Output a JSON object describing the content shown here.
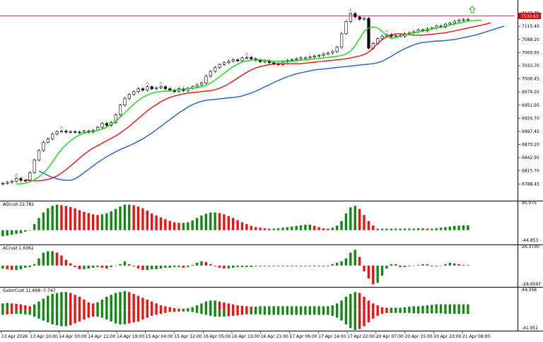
{
  "colors": {
    "background": "#ffffff",
    "candle_bull_body": "#ffffff",
    "candle_bear_body": "#000000",
    "candle_outline": "#000000",
    "jaw": "#1f5fd1",
    "teeth": "#ee1111",
    "lips": "#11dd11",
    "hist_up": "#118811",
    "hist_down": "#ee1111",
    "price_line": "#aa2222",
    "price_tag": "#cc1111",
    "fractal": "#999999",
    "signal_arrow": "#22bb22"
  },
  "main_panel": {
    "current_price": "7130.63",
    "yticks": [
      "7142.70",
      "7115.45",
      "7088.20",
      "7060.95",
      "7033.70",
      "7006.45",
      "6979.20",
      "6951.95",
      "6924.70",
      "6897.45",
      "6870.20",
      "6842.95",
      "6815.70",
      "6788.45"
    ]
  },
  "ao_panel": {
    "label": "AOcust 22.782",
    "ymax": "90.075",
    "ymin": "-44.853"
  },
  "ac_panel": {
    "label": "ACcust 1.6362",
    "ymax": "26.3730",
    "ymin": "-28.6597"
  },
  "gator_panel": {
    "label": "GatorCust 11.698 -7.747",
    "ymax": "44.358",
    "ymin": "-41.951"
  },
  "xticks": [
    "13 Apr 2026",
    "13 Apr 10:00",
    "14 Apr 03:00",
    "14 Apr 11:00",
    "14 Apr 19:00",
    "15 Apr 04:00",
    "15 Apr 12:00",
    "16 Apr 05:00",
    "16 Apr 13:00",
    "16 Apr 21:00",
    "17 Apr 06:00",
    "17 Apr 14:00",
    "17 Apr 22:00",
    "20 Apr 07:00",
    "20 Apr 15:00",
    "20 Apr 23:00",
    "21 Apr 08:00"
  ],
  "chart_data": {
    "type": "line",
    "candles_close": [
      6790,
      6792,
      6794,
      6800,
      6796,
      6795,
      6812,
      6838,
      6858,
      6875,
      6882,
      6892,
      6897,
      6898,
      6896,
      6897,
      6896,
      6895,
      6898,
      6896,
      6900,
      6906,
      6914,
      6910,
      6916,
      6932,
      6952,
      6966,
      6974,
      6980,
      6986,
      6983,
      6990,
      6986,
      6988,
      6990,
      6986,
      6983,
      6980,
      6986,
      6982,
      6987,
      6990,
      6994,
      6998,
      7012,
      7022,
      7030,
      7036,
      7040,
      7043,
      7046,
      7044,
      7050,
      7051,
      7048,
      7045,
      7042,
      7044,
      7040,
      7038,
      7036,
      7042,
      7045,
      7046,
      7048,
      7050,
      7050,
      7052,
      7054,
      7055,
      7058,
      7060,
      7063,
      7072,
      7100,
      7125,
      7142,
      7135,
      7130,
      7132,
      7070,
      7080,
      7090,
      7095,
      7098,
      7094,
      7096,
      7095,
      7100,
      7102,
      7104,
      7108,
      7106,
      7110,
      7112,
      7116,
      7114,
      7120,
      7122,
      7126,
      7128,
      7129,
      7130
    ],
    "alligator_jaw": [
      6815,
      6811,
      6806,
      6802,
      6799,
      6797,
      6796,
      6796,
      6799,
      6805,
      6812,
      6819,
      6826,
      6833,
      6839,
      6845,
      6850,
      6855,
      6860,
      6864,
      6868,
      6872,
      6877,
      6882,
      6888,
      6894,
      6901,
      6908,
      6915,
      6922,
      6929,
      6936,
      6942,
      6948,
      6953,
      6957,
      6960,
      6962,
      6963,
      6964,
      6965,
      6966,
      6967,
      6968,
      6969,
      6971,
      6974,
      6977,
      6981,
      6985,
      6990,
      6994,
      6999,
      7003,
      7007,
      7011,
      7014,
      7017,
      7019,
      7021,
      7023,
      7025,
      7026,
      7027,
      7028,
      7029,
      7030,
      7031,
      7032,
      7033,
      7034,
      7035,
      7036,
      7037,
      7038,
      7040,
      7043,
      7048,
      7053,
      7059,
      7064,
      7069,
      7073,
      7077,
      7080,
      7082,
      7083,
      7084,
      7085,
      7085,
      7086,
      7087,
      7088,
      7090,
      7092,
      7094,
      7096,
      7098,
      7101,
      7104,
      7107,
      7110,
      7113,
      7116
    ],
    "alligator_teeth": [
      6797,
      6796,
      6795,
      6795,
      6796,
      6798,
      6801,
      6805,
      6811,
      6818,
      6826,
      6834,
      6842,
      6850,
      6857,
      6863,
      6868,
      6873,
      6878,
      6883,
      6888,
      6894,
      6901,
      6908,
      6916,
      6924,
      6932,
      6940,
      6947,
      6953,
      6959,
      6964,
      6968,
      6971,
      6973,
      6975,
      6977,
      6978,
      6979,
      6980,
      6981,
      6982,
      6984,
      6987,
      6991,
      6996,
      7002,
      7008,
      7014,
      7020,
      7025,
      7029,
      7032,
      7034,
      7036,
      7037,
      7038,
      7038,
      7038,
      7038,
      7038,
      7038,
      7039,
      7040,
      7041,
      7042,
      7043,
      7044,
      7045,
      7046,
      7047,
      7048,
      7050,
      7052,
      7054,
      7057,
      7062,
      7070,
      7080,
      7088,
      7094,
      7098,
      7100,
      7100,
      7099,
      7098,
      7097,
      7097,
      7097,
      7098,
      7099,
      7100,
      7101,
      7102,
      7104,
      7106,
      7108,
      7110,
      7112,
      7114,
      7116,
      7118,
      7120,
      7123
    ],
    "alligator_lips": [
      6788,
      6789,
      6790,
      6793,
      6797,
      6803,
      6811,
      6821,
      6834,
      6848,
      6860,
      6870,
      6878,
      6885,
      6890,
      6894,
      6896,
      6898,
      6900,
      6902,
      6906,
      6912,
      6919,
      6927,
      6936,
      6945,
      6954,
      6962,
      6968,
      6973,
      6977,
      6979,
      6980,
      6981,
      6982,
      6983,
      6984,
      6985,
      6986,
      6987,
      6988,
      6990,
      6993,
      6998,
      7004,
      7011,
      7018,
      7025,
      7032,
      7037,
      7041,
      7044,
      7045,
      7046,
      7046,
      7045,
      7044,
      7043,
      7043,
      7043,
      7043,
      7043,
      7044,
      7045,
      7046,
      7047,
      7048,
      7049,
      7050,
      7051,
      7052,
      7053,
      7055,
      7058,
      7064,
      7075,
      7090,
      7105,
      7112,
      7114,
      7112,
      7105,
      7095,
      7090,
      7092,
      7095,
      7098,
      7100,
      7102,
      7104,
      7106,
      7108,
      7110,
      7112,
      7114,
      7116,
      7118,
      7120,
      7122,
      7124,
      7126,
      7127,
      7128,
      7128
    ],
    "ao_values": [
      -20,
      -18,
      -15,
      -12,
      -10,
      -5,
      0,
      20,
      40,
      58,
      72,
      80,
      84,
      82,
      80,
      76,
      72,
      66,
      60,
      56,
      52,
      50,
      52,
      56,
      62,
      70,
      78,
      84,
      84,
      82,
      78,
      72,
      64,
      55,
      48,
      42,
      36,
      30,
      26,
      24,
      24,
      26,
      32,
      40,
      48,
      54,
      58,
      58,
      56,
      52,
      46,
      40,
      33,
      26,
      20,
      14,
      10,
      8,
      6,
      5,
      5,
      6,
      8,
      10,
      12,
      14,
      16,
      18,
      18,
      14,
      10,
      6,
      5,
      8,
      15,
      30,
      55,
      75,
      80,
      70,
      50,
      30,
      15,
      5,
      5,
      5,
      5,
      5,
      5,
      5,
      5,
      5,
      6,
      6,
      5,
      5,
      6,
      8,
      10,
      12,
      14,
      15,
      16,
      16
    ],
    "ac_values": [
      -4,
      -5,
      -6,
      -6,
      -5,
      -3,
      -2,
      2,
      10,
      18,
      20,
      20,
      18,
      14,
      8,
      3,
      -2,
      -5,
      -5,
      -4,
      -3,
      -2,
      -3,
      -4,
      -2,
      0,
      2,
      6,
      2,
      -1,
      -4,
      -6,
      -6,
      -5,
      -5,
      -4,
      -3,
      -3,
      -2,
      -2,
      -3,
      -2,
      1,
      4,
      6,
      5,
      2,
      -1,
      -3,
      -4,
      -4,
      -3,
      -2,
      -2,
      -2,
      -2,
      -1,
      -1,
      -1,
      -1,
      -1,
      -1,
      -1,
      -1,
      -1,
      -1,
      -1,
      -1,
      -1,
      -1,
      -1,
      -1,
      -1,
      2,
      4,
      6,
      10,
      18,
      22,
      12,
      -8,
      -18,
      -26,
      -24,
      -14,
      -4,
      2,
      2,
      -2,
      -2,
      -1,
      0,
      1,
      2,
      2,
      -1,
      -1,
      0,
      2,
      4,
      3,
      2,
      1,
      1
    ],
    "gator_upper": [
      14,
      15,
      14,
      13,
      12,
      10,
      8,
      12,
      18,
      24,
      30,
      34,
      36,
      38,
      38,
      36,
      32,
      28,
      22,
      16,
      14,
      16,
      22,
      28,
      32,
      36,
      38,
      40,
      38,
      34,
      30,
      26,
      22,
      18,
      14,
      10,
      8,
      6,
      4,
      3,
      3,
      4,
      6,
      10,
      14,
      18,
      20,
      20,
      18,
      16,
      14,
      12,
      10,
      9,
      8,
      7,
      7,
      8,
      8,
      8,
      8,
      8,
      8,
      8,
      8,
      8,
      8,
      8,
      8,
      8,
      8,
      8,
      8,
      10,
      14,
      20,
      28,
      34,
      38,
      36,
      28,
      20,
      14,
      10,
      6,
      5,
      5,
      5,
      5,
      6,
      7,
      8,
      8,
      9,
      10,
      11,
      12,
      12,
      12,
      12,
      12,
      12,
      12,
      12
    ],
    "gator_lower": [
      -10,
      -9,
      -8,
      -8,
      -8,
      -9,
      -10,
      -14,
      -18,
      -22,
      -26,
      -30,
      -32,
      -34,
      -34,
      -32,
      -28,
      -24,
      -20,
      -16,
      -14,
      -14,
      -16,
      -20,
      -24,
      -28,
      -30,
      -30,
      -28,
      -26,
      -24,
      -20,
      -16,
      -12,
      -10,
      -8,
      -6,
      -4,
      -4,
      -3,
      -3,
      -3,
      -4,
      -6,
      -8,
      -10,
      -12,
      -14,
      -14,
      -14,
      -13,
      -12,
      -11,
      -10,
      -9,
      -9,
      -9,
      -9,
      -10,
      -10,
      -10,
      -10,
      -10,
      -10,
      -10,
      -10,
      -10,
      -10,
      -10,
      -10,
      -10,
      -10,
      -10,
      -12,
      -16,
      -22,
      -30,
      -38,
      -42,
      -40,
      -34,
      -26,
      -18,
      -12,
      -8,
      -6,
      -6,
      -6,
      -6,
      -6,
      -6,
      -7,
      -7,
      -7,
      -7,
      -7,
      -7,
      -7,
      -8,
      -8,
      -8,
      -8,
      -8,
      -8
    ],
    "main_ylim": [
      6781.6,
      7149.5
    ],
    "ao_ylim": [
      -44.853,
      90.075
    ],
    "ac_ylim": [
      -28.6597,
      26.373
    ],
    "gator_ylim": [
      -41.951,
      44.358
    ]
  }
}
